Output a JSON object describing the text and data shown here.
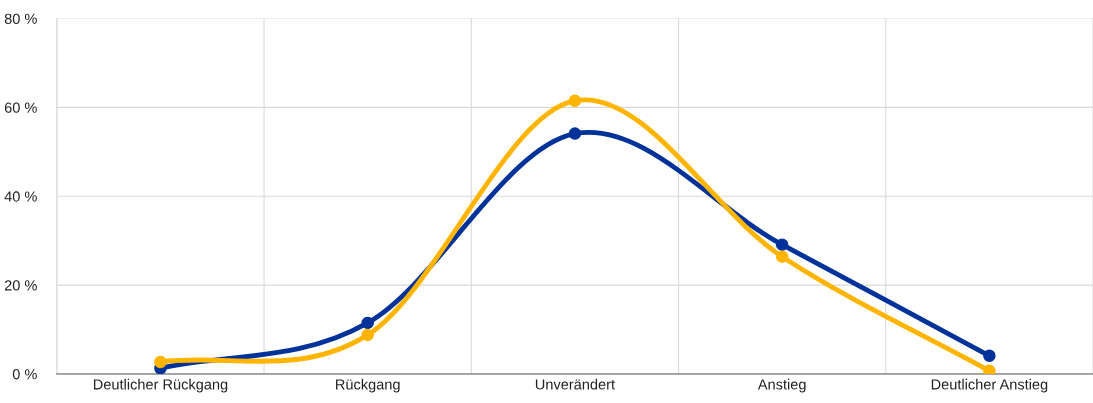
{
  "chart_data": {
    "type": "line",
    "categories": [
      "Deutlicher Rückgang",
      "Rückgang",
      "Unverändert",
      "Anstieg",
      "Deutlicher Anstieg"
    ],
    "series": [
      {
        "color": "#003299",
        "values": [
          1.3,
          11.5,
          54.1,
          29.1,
          4.1
        ]
      },
      {
        "color": "#ffb400",
        "values": [
          2.7,
          8.8,
          61.5,
          26.4,
          0.7
        ]
      }
    ],
    "ylim": [
      0,
      80
    ],
    "yticks": [
      {
        "value": 0,
        "label": "0 %"
      },
      {
        "value": 20,
        "label": "20 %"
      },
      {
        "value": 40,
        "label": "40 %"
      },
      {
        "value": 60,
        "label": "60 %"
      },
      {
        "value": 80,
        "label": "80 %"
      }
    ],
    "grid": true,
    "legend": false,
    "marker": "circle",
    "line_style": "solid"
  }
}
